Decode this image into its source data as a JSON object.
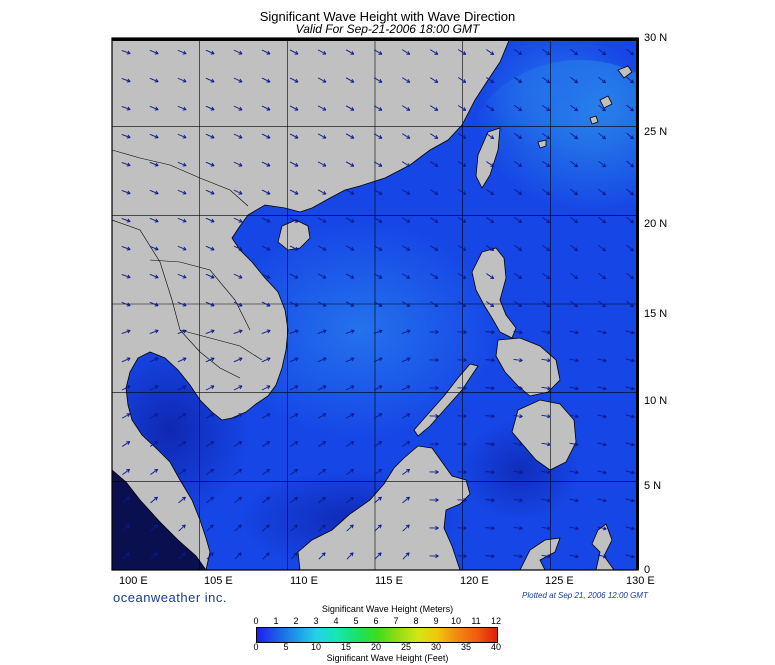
{
  "header": {
    "title": "Significant Wave Height with Wave Direction",
    "subtitle": "Valid For Sep-21-2006 18:00 GMT"
  },
  "map": {
    "lon_labels": [
      "100 E",
      "105 E",
      "110 E",
      "115 E",
      "120 E",
      "125 E",
      "130 E"
    ],
    "lat_labels": [
      "30 N",
      "25 N",
      "20 N",
      "15 N",
      "10 N",
      "5 N",
      "0"
    ],
    "lon_range": [
      100,
      130
    ],
    "lat_range": [
      0,
      30
    ],
    "land_color": "#c0c0c0",
    "sea_color_base": "#1646e6",
    "arrow_color": "#0a1a8c"
  },
  "footer": {
    "brand": "oceanweather inc.",
    "plotted": "Plotted at Sep 21, 2006 12:00 GMT"
  },
  "colorbar": {
    "top_title": "Significant Wave Height (Meters)",
    "bottom_title": "Significant Wave Height (Feet)",
    "meters": [
      "0",
      "1",
      "2",
      "3",
      "4",
      "5",
      "6",
      "7",
      "8",
      "9",
      "10",
      "11",
      "12"
    ],
    "feet": [
      "0",
      "5",
      "10",
      "15",
      "20",
      "25",
      "30",
      "35",
      "40"
    ]
  }
}
